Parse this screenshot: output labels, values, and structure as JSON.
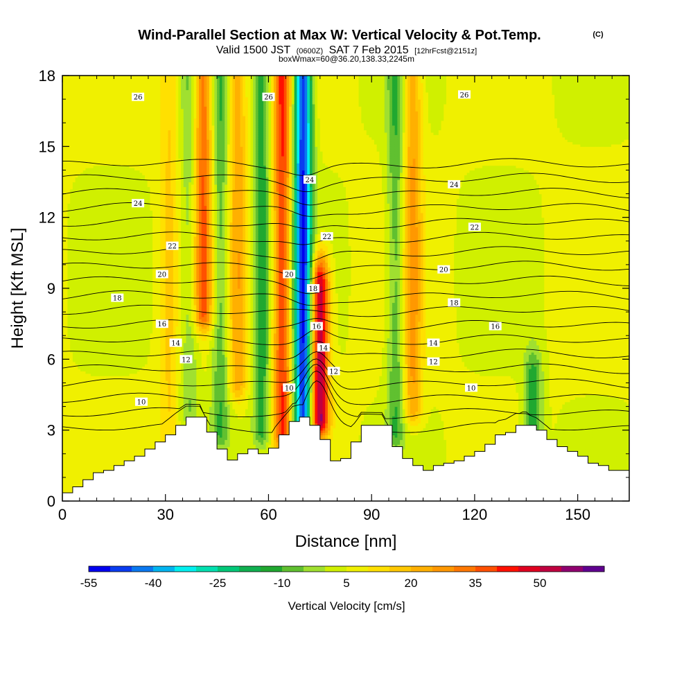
{
  "chart_data": {
    "type": "heatmap",
    "title": "Wind-Parallel Section at Max W: Vertical Velocity & Pot.Temp.",
    "title_suffix": "(C)",
    "subtitle": {
      "valid": "Valid 1500 JST",
      "utc": "(0600Z)",
      "date": "SAT 7 Feb 2015",
      "forecast": "[12hrFcst@2151z]"
    },
    "subtitle2": "boxWmax=60@36.20,138.33,2245m",
    "xlabel": "Distance [nm]",
    "ylabel": "Height [Kft MSL]",
    "xlim": [
      0,
      165
    ],
    "ylim": [
      0,
      18
    ],
    "xticks": [
      "0",
      "30",
      "60",
      "90",
      "120",
      "150"
    ],
    "yticks": [
      "0",
      "3",
      "6",
      "9",
      "12",
      "15",
      "18"
    ],
    "colorbar": {
      "title": "Vertical Velocity [cm/s]",
      "tick_labels": [
        "-55",
        "-40",
        "-25",
        "-10",
        "5",
        "20",
        "35",
        "50"
      ],
      "levels": [
        -55,
        -50,
        -45,
        -40,
        -35,
        -30,
        -25,
        -20,
        -15,
        -10,
        -5,
        0,
        5,
        10,
        15,
        20,
        25,
        30,
        35,
        40,
        45,
        50,
        55,
        60
      ],
      "colors": [
        "#0000f0",
        "#0a3cf0",
        "#0a78f0",
        "#00b4f0",
        "#00f0f0",
        "#00e0b0",
        "#00c878",
        "#10b050",
        "#20a830",
        "#60c030",
        "#a0e030",
        "#d0f000",
        "#f0f000",
        "#ffe000",
        "#ffc800",
        "#ffb000",
        "#ff9800",
        "#ff7800",
        "#ff5000",
        "#ff1000",
        "#e00020",
        "#c00040",
        "#900070",
        "#600090"
      ]
    },
    "theta_contours": {
      "units": "C",
      "levels": [
        9,
        10,
        11,
        12,
        13,
        14,
        15,
        16,
        17,
        18,
        19,
        20,
        21,
        22,
        23,
        24,
        25,
        26,
        27
      ],
      "labels": [
        {
          "text": "26",
          "x": 22,
          "y": 17.1
        },
        {
          "text": "26",
          "x": 60,
          "y": 17.1
        },
        {
          "text": "26",
          "x": 117,
          "y": 17.2
        },
        {
          "text": "24",
          "x": 22,
          "y": 12.6
        },
        {
          "text": "24",
          "x": 72,
          "y": 13.6
        },
        {
          "text": "24",
          "x": 114,
          "y": 13.4
        },
        {
          "text": "22",
          "x": 32,
          "y": 10.8
        },
        {
          "text": "22",
          "x": 77,
          "y": 11.2
        },
        {
          "text": "22",
          "x": 120,
          "y": 11.6
        },
        {
          "text": "20",
          "x": 29,
          "y": 9.6
        },
        {
          "text": "20",
          "x": 66,
          "y": 9.6
        },
        {
          "text": "20",
          "x": 111,
          "y": 9.8
        },
        {
          "text": "18",
          "x": 16,
          "y": 8.6
        },
        {
          "text": "18",
          "x": 73,
          "y": 9.0
        },
        {
          "text": "18",
          "x": 114,
          "y": 8.4
        },
        {
          "text": "16",
          "x": 29,
          "y": 7.5
        },
        {
          "text": "16",
          "x": 74,
          "y": 7.4
        },
        {
          "text": "16",
          "x": 126,
          "y": 7.4
        },
        {
          "text": "14",
          "x": 33,
          "y": 6.7
        },
        {
          "text": "14",
          "x": 76,
          "y": 6.5
        },
        {
          "text": "14",
          "x": 108,
          "y": 6.7
        },
        {
          "text": "12",
          "x": 36,
          "y": 6.0
        },
        {
          "text": "12",
          "x": 79,
          "y": 5.5
        },
        {
          "text": "12",
          "x": 108,
          "y": 5.9
        },
        {
          "text": "10",
          "x": 23,
          "y": 4.2
        },
        {
          "text": "10",
          "x": 66,
          "y": 4.8
        },
        {
          "text": "10",
          "x": 119,
          "y": 4.8
        }
      ]
    },
    "velocity_features": [
      {
        "kind": "updraft",
        "x": 31,
        "z_base": 0,
        "z_top": 18,
        "amp": 10
      },
      {
        "kind": "downdraft",
        "x": 37,
        "z_base": 4,
        "z_top": 18,
        "amp": -10
      },
      {
        "kind": "updraft",
        "x": 41,
        "z_base": 8,
        "z_top": 18,
        "amp": 30
      },
      {
        "kind": "downdraft",
        "x": 46,
        "z_base": 3,
        "z_top": 18,
        "amp": -15
      },
      {
        "kind": "updraft",
        "x": 51,
        "z_base": 5,
        "z_top": 18,
        "amp": 18
      },
      {
        "kind": "downdraft",
        "x": 58,
        "z_base": 3,
        "z_top": 18,
        "amp": -18
      },
      {
        "kind": "updraft",
        "x": 64,
        "z_base": 3,
        "z_top": 18,
        "amp": 35
      },
      {
        "kind": "downdraft",
        "x": 70,
        "z_base": 3.5,
        "z_top": 18,
        "amp": -55
      },
      {
        "kind": "updraft",
        "x": 75,
        "z_base": 3.5,
        "z_top": 9,
        "amp": 50
      },
      {
        "kind": "downdraft",
        "x": 97,
        "z_base": 3,
        "z_top": 18,
        "amp": -15
      },
      {
        "kind": "updraft",
        "x": 102,
        "z_base": 4,
        "z_top": 18,
        "amp": 20
      },
      {
        "kind": "downdraft",
        "x": 137,
        "z_base": 3,
        "z_top": 5,
        "amp": -20
      }
    ],
    "terrain": [
      {
        "x": 0,
        "z": 0.35
      },
      {
        "x": 3,
        "z": 0.6
      },
      {
        "x": 6,
        "z": 0.9
      },
      {
        "x": 9,
        "z": 1.2
      },
      {
        "x": 12,
        "z": 1.3
      },
      {
        "x": 15,
        "z": 1.5
      },
      {
        "x": 18,
        "z": 1.7
      },
      {
        "x": 21,
        "z": 1.9
      },
      {
        "x": 24,
        "z": 2.2
      },
      {
        "x": 27,
        "z": 2.5
      },
      {
        "x": 30,
        "z": 2.8
      },
      {
        "x": 33,
        "z": 3.2
      },
      {
        "x": 36,
        "z": 3.55
      },
      {
        "x": 40,
        "z": 3.55
      },
      {
        "x": 43,
        "z": 2.6
      },
      {
        "x": 46,
        "z": 2.0
      },
      {
        "x": 49,
        "z": 1.6
      },
      {
        "x": 52,
        "z": 2.2
      },
      {
        "x": 55,
        "z": 2.2
      },
      {
        "x": 58,
        "z": 1.9
      },
      {
        "x": 61,
        "z": 2.4
      },
      {
        "x": 64,
        "z": 3.0
      },
      {
        "x": 67,
        "z": 3.55
      },
      {
        "x": 70,
        "z": 3.55
      },
      {
        "x": 72,
        "z": 3.2
      },
      {
        "x": 75,
        "z": 2.6
      },
      {
        "x": 78,
        "z": 1.7
      },
      {
        "x": 81,
        "z": 1.8
      },
      {
        "x": 84,
        "z": 2.5
      },
      {
        "x": 87,
        "z": 3.2
      },
      {
        "x": 90,
        "z": 3.2
      },
      {
        "x": 93,
        "z": 3.2
      },
      {
        "x": 96,
        "z": 2.3
      },
      {
        "x": 99,
        "z": 1.8
      },
      {
        "x": 102,
        "z": 1.5
      },
      {
        "x": 105,
        "z": 1.3
      },
      {
        "x": 108,
        "z": 1.5
      },
      {
        "x": 111,
        "z": 1.6
      },
      {
        "x": 114,
        "z": 1.7
      },
      {
        "x": 117,
        "z": 1.9
      },
      {
        "x": 120,
        "z": 2.1
      },
      {
        "x": 123,
        "z": 2.4
      },
      {
        "x": 126,
        "z": 2.8
      },
      {
        "x": 129,
        "z": 2.9
      },
      {
        "x": 132,
        "z": 3.2
      },
      {
        "x": 135,
        "z": 3.2
      },
      {
        "x": 138,
        "z": 3.0
      },
      {
        "x": 141,
        "z": 2.6
      },
      {
        "x": 144,
        "z": 2.3
      },
      {
        "x": 147,
        "z": 2.1
      },
      {
        "x": 150,
        "z": 1.9
      },
      {
        "x": 153,
        "z": 1.6
      },
      {
        "x": 156,
        "z": 1.5
      },
      {
        "x": 159,
        "z": 1.3
      },
      {
        "x": 162,
        "z": 1.3
      },
      {
        "x": 165,
        "z": 1.3
      }
    ]
  }
}
